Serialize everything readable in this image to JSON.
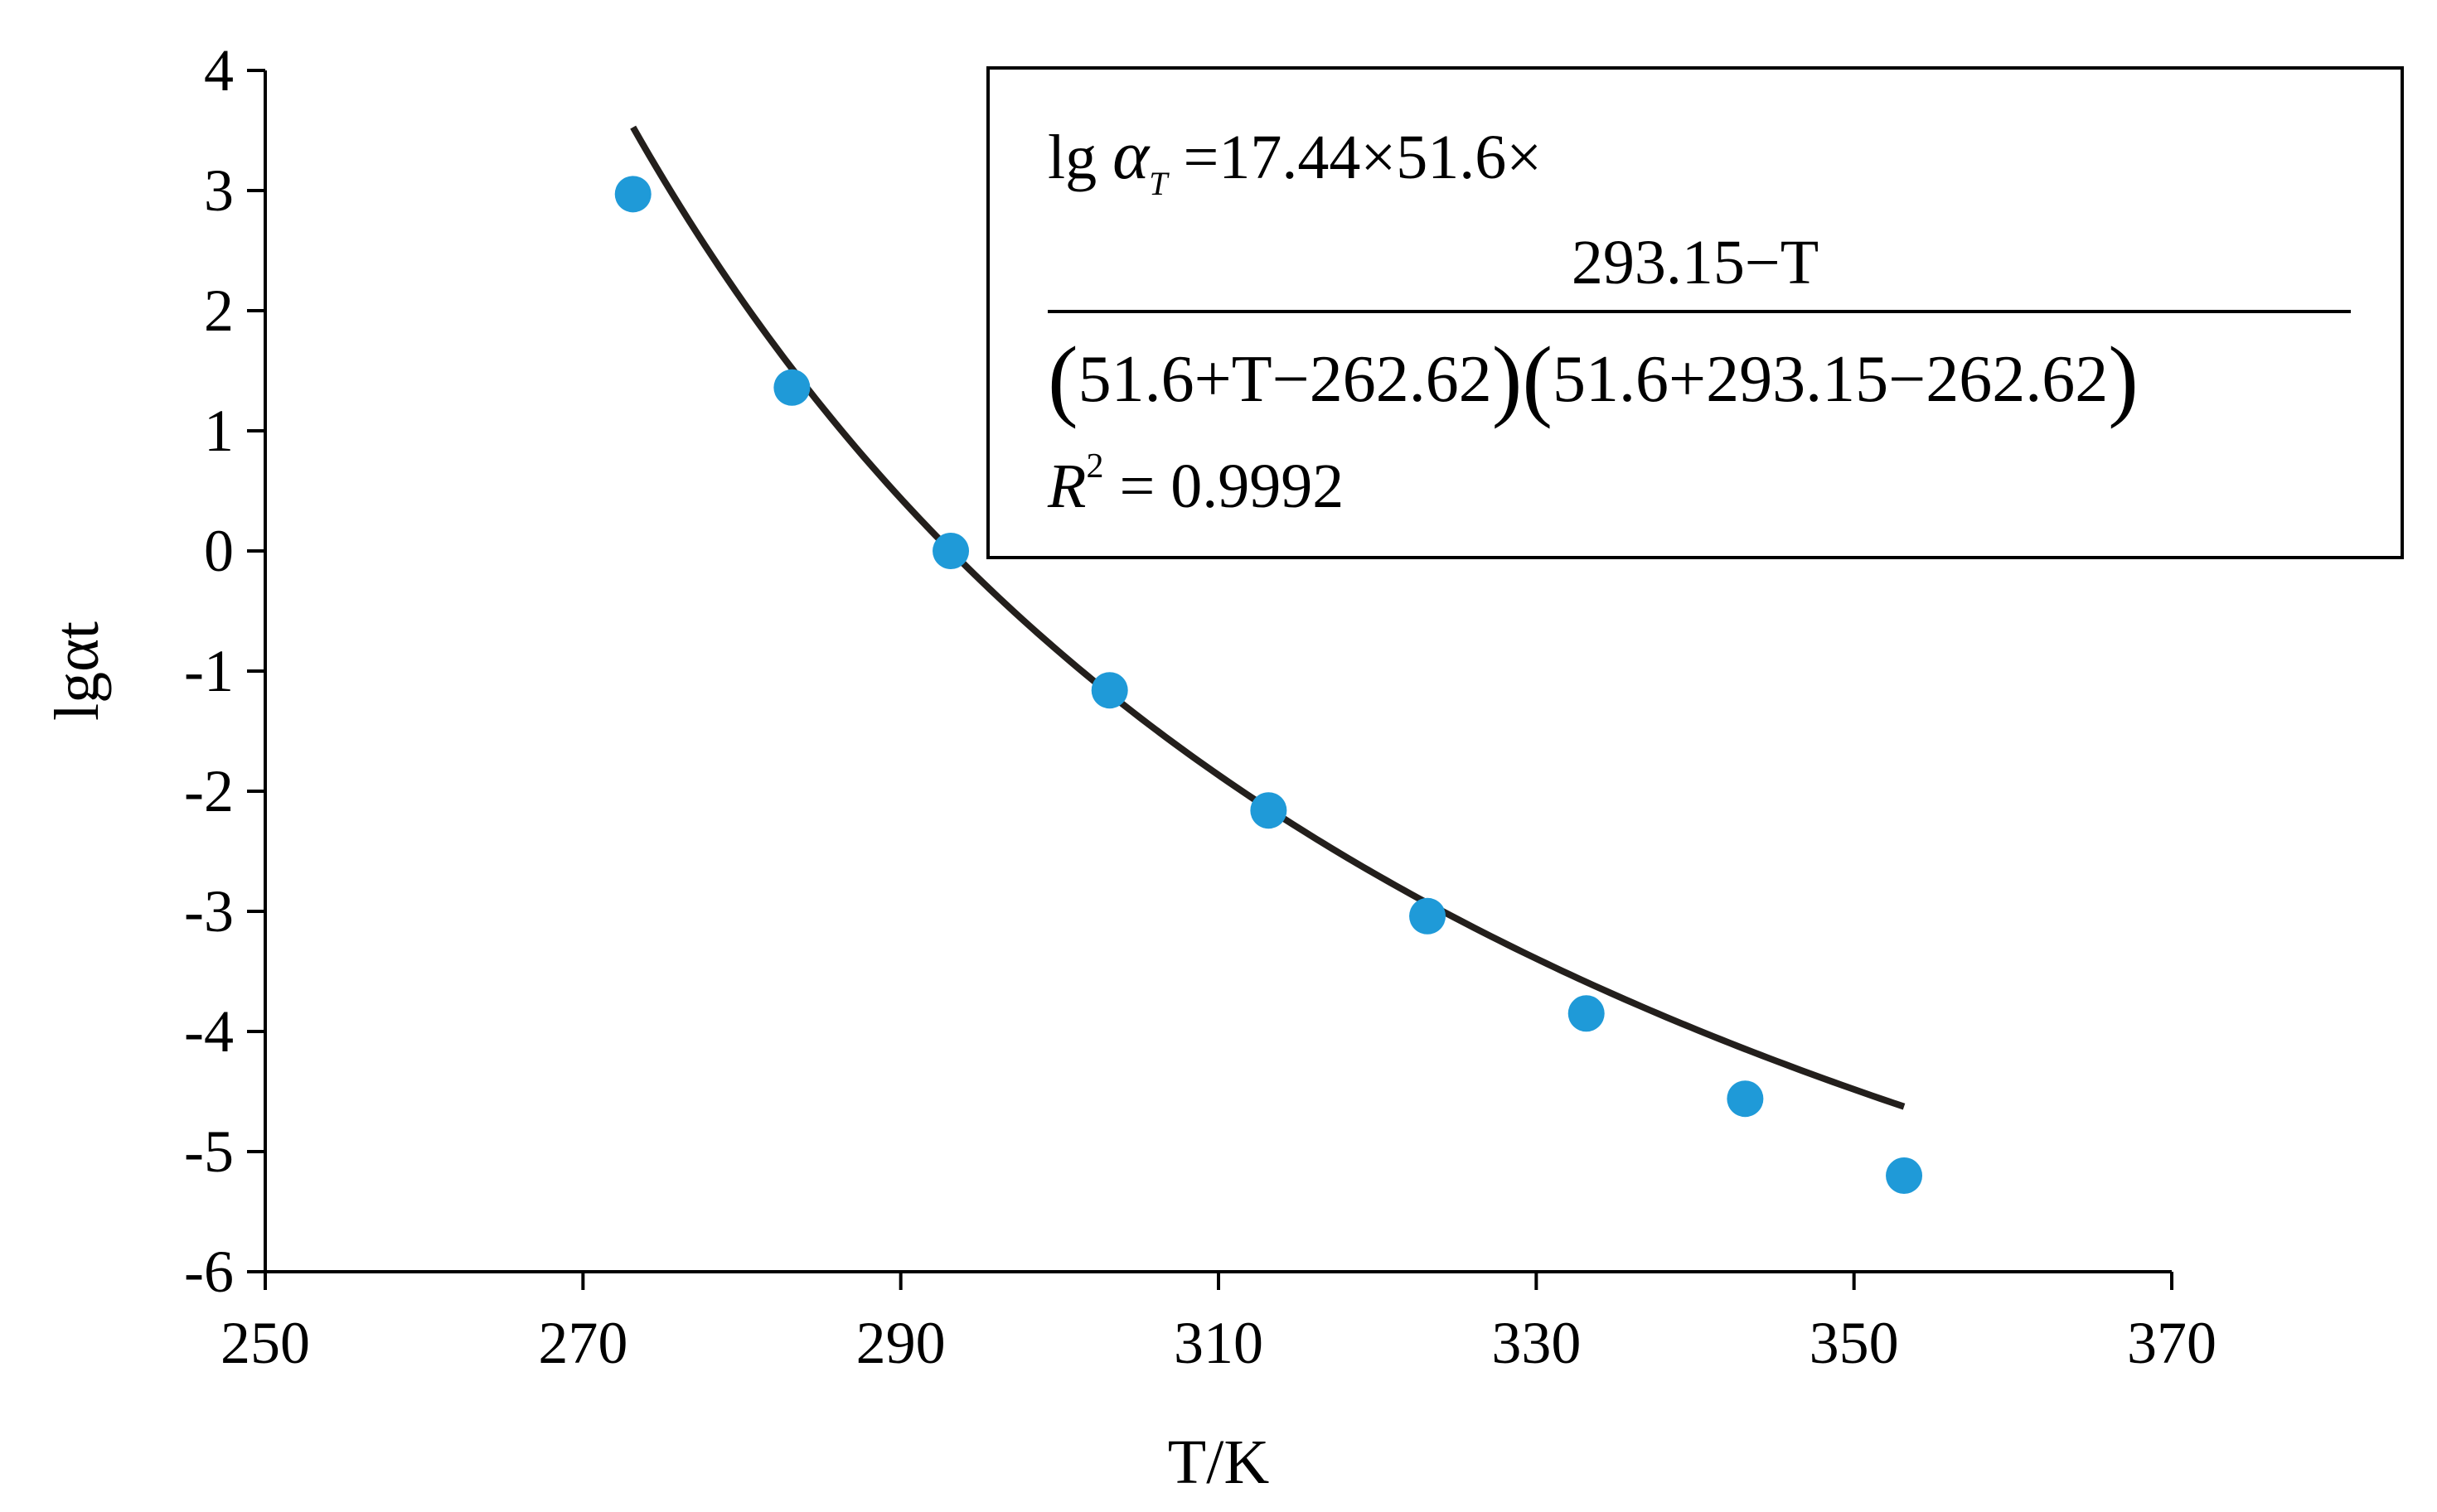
{
  "chart_data": {
    "type": "scatter",
    "xlabel": "T/K",
    "ylabel": "lgαt",
    "xlim": [
      250,
      370
    ],
    "ylim": [
      -6,
      4
    ],
    "xticks": [
      "250",
      "270",
      "290",
      "310",
      "330",
      "350",
      "370"
    ],
    "yticks": [
      "4",
      "3",
      "2",
      "1",
      "0",
      "-1",
      "-2",
      "-3",
      "-4",
      "-5",
      "-6"
    ],
    "series": [
      {
        "marker_color": "#1f9ad8",
        "line_color": "#231f1c",
        "x": [
          273.15,
          283.15,
          293.15,
          303.15,
          313.15,
          323.15,
          333.15,
          343.15,
          353.15
        ],
        "y": [
          2.97,
          1.36,
          0.0,
          -1.16,
          -2.16,
          -3.04,
          -3.85,
          -4.56,
          -5.2
        ]
      }
    ],
    "fit_params": {
      "c1": 17.44,
      "c2": 51.6,
      "tr": 293.15,
      "t0": 262.62
    },
    "annotation": {
      "line1_lhs": "lg",
      "alpha": "α",
      "alpha_sub": "T",
      "line1_rhs": "=17.44×51.6×",
      "numerator": "293.15−T",
      "denominator_1": "51.6+T−262.62",
      "denominator_2": "51.6+293.15−262.62",
      "r2_label": "R",
      "r2_exp": "2",
      "r2_value": "= 0.9992"
    }
  }
}
